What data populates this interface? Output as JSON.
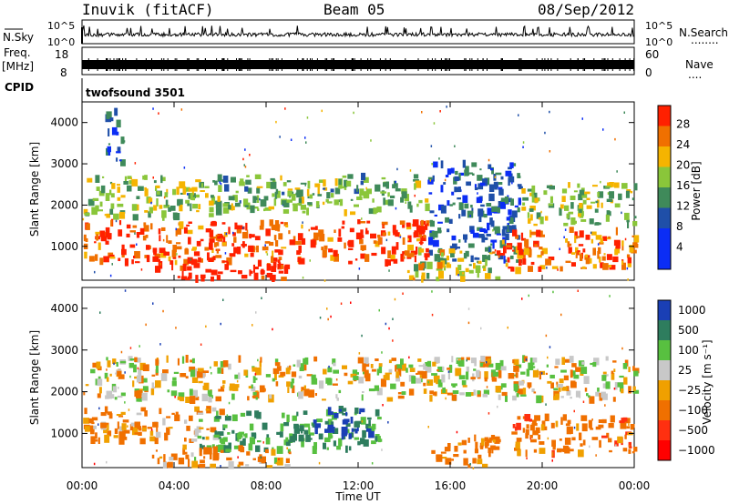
{
  "header": {
    "station": "Inuvik (fitACF)",
    "beam": "Beam 05",
    "date": "08/Sep/2012"
  },
  "panels": {
    "nsky": {
      "left_label": "N.Sky",
      "ticks_left": [
        "10^5",
        "10^0"
      ],
      "ticks_right": [
        "10^5",
        "10^0"
      ],
      "right_label": "N.Search",
      "right_dots": "........"
    },
    "freq": {
      "left_label_1": "Freq.",
      "left_label_2": "[MHz]",
      "ticks_left": [
        "18",
        "8"
      ],
      "ticks_right": [
        "60",
        "0"
      ],
      "right_label": "Nave",
      "right_dots": "...."
    },
    "cpid": {
      "label": "CPID",
      "value": "twofsound 3501"
    }
  },
  "x_axis": {
    "label": "Time UT",
    "ticks": [
      "00:00",
      "04:00",
      "08:00",
      "12:00",
      "16:00",
      "20:00",
      "00:00"
    ]
  },
  "power_panel": {
    "ylabel": "Slant Range [km]",
    "yticks": [
      "4000",
      "3000",
      "2000",
      "1000"
    ],
    "colorbar_label": "Power [dB]",
    "colorbar_ticks": [
      "28",
      "24",
      "20",
      "16",
      "12",
      "8",
      "4"
    ]
  },
  "velocity_panel": {
    "ylabel": "Slant Range [km]",
    "yticks": [
      "4000",
      "3000",
      "2000",
      "1000"
    ],
    "colorbar_label": "Velocity [m s⁻¹]",
    "colorbar_ticks": [
      "1000",
      "500",
      "100",
      "25",
      "−25",
      "−100",
      "−500",
      "−1000"
    ]
  },
  "chart_data": {
    "type": "heatmap",
    "x": {
      "label": "Time UT",
      "range_hours": [
        0,
        24
      ],
      "tick_labels": [
        "00:00",
        "04:00",
        "08:00",
        "12:00",
        "16:00",
        "20:00",
        "00:00"
      ]
    },
    "y": {
      "label": "Slant Range [km]",
      "range": [
        180,
        4500
      ],
      "tick_values": [
        1000,
        2000,
        3000,
        4000
      ]
    },
    "panels": [
      {
        "name": "Power [dB]",
        "color_scale": [
          {
            "level": 0,
            "color": "#0b2df5"
          },
          {
            "level": 4,
            "color": "#0b2df5"
          },
          {
            "level": 8,
            "color": "#1f4fa8"
          },
          {
            "level": 12,
            "color": "#3f8a5a"
          },
          {
            "level": 16,
            "color": "#8ac63a"
          },
          {
            "level": 20,
            "color": "#f5b400"
          },
          {
            "level": 24,
            "color": "#f07000"
          },
          {
            "level": 28,
            "color": "#ff2000"
          }
        ],
        "echo_regions": [
          {
            "t": [
              0,
              6
            ],
            "range_km": [
              1700,
              2700
            ],
            "level": 16
          },
          {
            "t": [
              6,
              15
            ],
            "range_km": [
              1800,
              2700
            ],
            "level": 14
          },
          {
            "t": [
              15,
              19
            ],
            "range_km": [
              600,
              3000
            ],
            "level": 8
          },
          {
            "t": [
              19,
              24
            ],
            "range_km": [
              1500,
              2500
            ],
            "level": 16
          },
          {
            "t": [
              0,
              15
            ],
            "range_km": [
              600,
              1600
            ],
            "level": 26
          },
          {
            "t": [
              3,
              9
            ],
            "range_km": [
              200,
              700
            ],
            "level": 30
          },
          {
            "t": [
              14,
              18
            ],
            "range_km": [
              200,
              900
            ],
            "level": 18
          },
          {
            "t": [
              18,
              24
            ],
            "range_km": [
              400,
              1400
            ],
            "level": 24
          },
          {
            "t": [
              1,
              1.7
            ],
            "range_km": [
              3000,
              4300
            ],
            "level": 8
          }
        ]
      },
      {
        "name": "Velocity [m s-1]",
        "color_scale": [
          {
            "level": 1000,
            "color": "#1a3fb5"
          },
          {
            "level": 500,
            "color": "#2e7d5e"
          },
          {
            "level": 100,
            "color": "#58c040"
          },
          {
            "level": 25,
            "color": "#c8c8c8"
          },
          {
            "level": -25,
            "color": "#f0a000"
          },
          {
            "level": -100,
            "color": "#f07000"
          },
          {
            "level": -500,
            "color": "#ff3010"
          },
          {
            "level": -1000,
            "color": "#ff0000"
          }
        ],
        "echo_regions": [
          {
            "t": [
              0,
              24
            ],
            "range_km": [
              1800,
              2800
            ],
            "level": 0
          },
          {
            "t": [
              0,
              6
            ],
            "range_km": [
              800,
              1600
            ],
            "level": -100
          },
          {
            "t": [
              5,
              13
            ],
            "range_km": [
              600,
              1500
            ],
            "level": 300
          },
          {
            "t": [
              10,
              12.5
            ],
            "range_km": [
              900,
              1600
            ],
            "level": 800
          },
          {
            "t": [
              3,
              9
            ],
            "range_km": [
              200,
              700
            ],
            "level": -50
          },
          {
            "t": [
              15,
              18
            ],
            "range_km": [
              200,
              900
            ],
            "level": -150
          },
          {
            "t": [
              18.5,
              24
            ],
            "range_km": [
              500,
              1400
            ],
            "level": -200
          }
        ]
      }
    ]
  }
}
